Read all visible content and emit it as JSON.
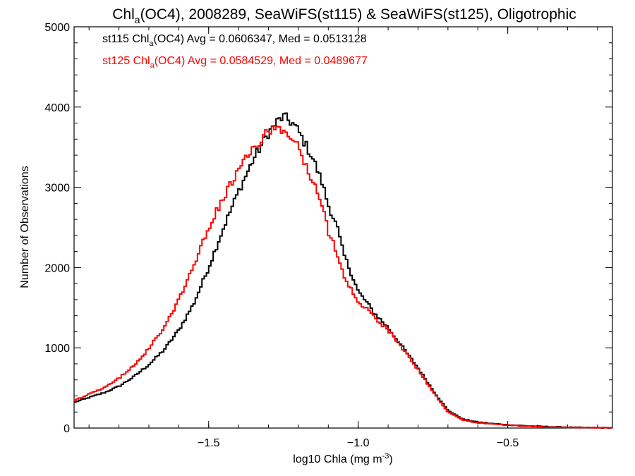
{
  "chart_data": {
    "type": "line",
    "title_parts": {
      "pre": "Chl",
      "sub": "a",
      "post": "(OC4), 2008289, SeaWiFS(st115) & SeaWiFS(st125), Oligotrophic"
    },
    "xlabel": {
      "pre": "log10 Chla (mg m",
      "sup": "-3",
      "post": ")"
    },
    "ylabel": "Number of Observations",
    "xlim": [
      -1.95,
      -0.15
    ],
    "ylim": [
      0,
      5000
    ],
    "x_ticks": [
      -1.5,
      -1.0,
      -0.5
    ],
    "x_tick_labels": [
      "−1.5",
      "−1.0",
      "−0.5"
    ],
    "y_ticks": [
      0,
      1000,
      2000,
      3000,
      4000,
      5000
    ],
    "y_tick_labels": [
      "0",
      "1000",
      "2000",
      "3000",
      "4000",
      "5000"
    ],
    "grid": false,
    "legend_placement": "top-left",
    "series": [
      {
        "id": "st115",
        "color": "#000000",
        "legend": {
          "pre": "st115 Chl",
          "sub": "a",
          "post": "(OC4) Avg = 0.0606347, Med = 0.0513128"
        },
        "points": [
          [
            -1.95,
            320
          ],
          [
            -1.9,
            380
          ],
          [
            -1.85,
            440
          ],
          [
            -1.8,
            520
          ],
          [
            -1.75,
            640
          ],
          [
            -1.7,
            790
          ],
          [
            -1.65,
            970
          ],
          [
            -1.6,
            1220
          ],
          [
            -1.55,
            1550
          ],
          [
            -1.5,
            2000
          ],
          [
            -1.45,
            2500
          ],
          [
            -1.4,
            2950
          ],
          [
            -1.35,
            3350
          ],
          [
            -1.3,
            3680
          ],
          [
            -1.27,
            3820
          ],
          [
            -1.25,
            3880
          ],
          [
            -1.22,
            3800
          ],
          [
            -1.2,
            3700
          ],
          [
            -1.18,
            3560
          ],
          [
            -1.15,
            3350
          ],
          [
            -1.12,
            3050
          ],
          [
            -1.1,
            2780
          ],
          [
            -1.07,
            2500
          ],
          [
            -1.05,
            2180
          ],
          [
            -1.02,
            1900
          ],
          [
            -1.0,
            1700
          ],
          [
            -0.97,
            1560
          ],
          [
            -0.95,
            1450
          ],
          [
            -0.9,
            1250
          ],
          [
            -0.85,
            1000
          ],
          [
            -0.8,
            750
          ],
          [
            -0.75,
            470
          ],
          [
            -0.7,
            220
          ],
          [
            -0.65,
            110
          ],
          [
            -0.6,
            75
          ],
          [
            -0.55,
            55
          ],
          [
            -0.5,
            40
          ],
          [
            -0.45,
            30
          ],
          [
            -0.4,
            22
          ],
          [
            -0.35,
            15
          ],
          [
            -0.3,
            10
          ],
          [
            -0.25,
            6
          ],
          [
            -0.2,
            4
          ],
          [
            -0.15,
            3
          ]
        ]
      },
      {
        "id": "st125",
        "color": "#ff0000",
        "legend": {
          "pre": "st125 Chl",
          "sub": "a",
          "post": "(OC4) Avg = 0.0584529, Med = 0.0489677"
        },
        "points": [
          [
            -1.95,
            340
          ],
          [
            -1.9,
            420
          ],
          [
            -1.85,
            500
          ],
          [
            -1.8,
            620
          ],
          [
            -1.75,
            780
          ],
          [
            -1.7,
            990
          ],
          [
            -1.65,
            1250
          ],
          [
            -1.6,
            1600
          ],
          [
            -1.55,
            2020
          ],
          [
            -1.5,
            2500
          ],
          [
            -1.45,
            2880
          ],
          [
            -1.4,
            3200
          ],
          [
            -1.35,
            3500
          ],
          [
            -1.3,
            3690
          ],
          [
            -1.27,
            3760
          ],
          [
            -1.25,
            3700
          ],
          [
            -1.22,
            3620
          ],
          [
            -1.2,
            3500
          ],
          [
            -1.18,
            3300
          ],
          [
            -1.15,
            3050
          ],
          [
            -1.12,
            2750
          ],
          [
            -1.1,
            2450
          ],
          [
            -1.07,
            2180
          ],
          [
            -1.05,
            1920
          ],
          [
            -1.02,
            1700
          ],
          [
            -1.0,
            1580
          ],
          [
            -0.97,
            1480
          ],
          [
            -0.95,
            1400
          ],
          [
            -0.9,
            1220
          ],
          [
            -0.85,
            980
          ],
          [
            -0.8,
            730
          ],
          [
            -0.75,
            450
          ],
          [
            -0.7,
            200
          ],
          [
            -0.65,
            100
          ],
          [
            -0.6,
            65
          ],
          [
            -0.55,
            50
          ],
          [
            -0.5,
            35
          ],
          [
            -0.45,
            25
          ],
          [
            -0.4,
            18
          ],
          [
            -0.35,
            12
          ],
          [
            -0.3,
            8
          ],
          [
            -0.25,
            5
          ],
          [
            -0.2,
            3
          ],
          [
            -0.15,
            2
          ]
        ]
      }
    ]
  }
}
